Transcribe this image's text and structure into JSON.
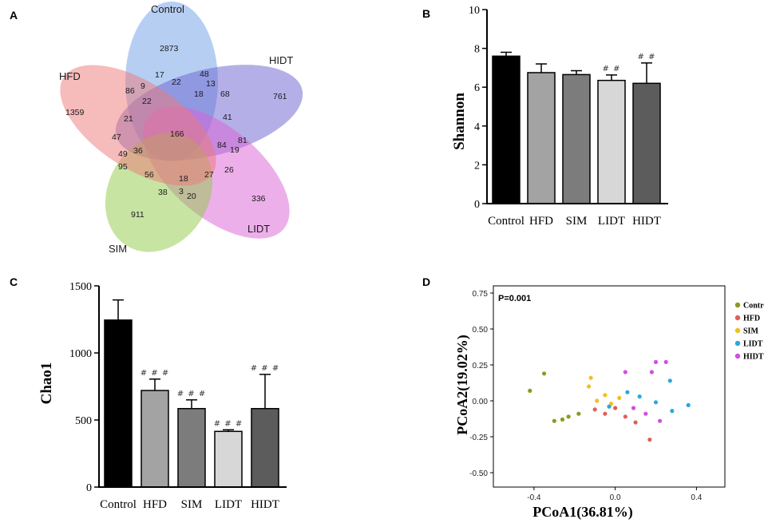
{
  "panel_letters": {
    "a": "A",
    "b": "B",
    "c": "C",
    "d": "D"
  },
  "chart_data": [
    {
      "type": "venn",
      "panel": "A",
      "sets": [
        {
          "name": "Control",
          "color": "#6f9ee8"
        },
        {
          "name": "HIDT",
          "color": "#6a62cf"
        },
        {
          "name": "LIDT",
          "color": "#db5fd6"
        },
        {
          "name": "SIM",
          "color": "#8fca48"
        },
        {
          "name": "HFD",
          "color": "#ee7878"
        }
      ],
      "region_values": [
        "2873",
        "761",
        "336",
        "911",
        "1359",
        "17",
        "48",
        "13",
        "22",
        "9",
        "86",
        "22",
        "18",
        "68",
        "41",
        "21",
        "47",
        "166",
        "84",
        "19",
        "81",
        "49",
        "36",
        "95",
        "56",
        "18",
        "27",
        "26",
        "38",
        "3",
        "20"
      ]
    },
    {
      "type": "bar",
      "panel": "B",
      "title": "",
      "ylabel": "Shannon",
      "ylim": [
        0,
        10
      ],
      "yticks": [
        "0",
        "2",
        "4",
        "6",
        "8",
        "10"
      ],
      "categories": [
        "Control",
        "HFD",
        "SIM",
        "LIDT",
        "HIDT"
      ],
      "values": [
        7.6,
        6.75,
        6.65,
        6.35,
        6.2
      ],
      "errors": [
        0.2,
        0.45,
        0.2,
        0.28,
        1.05
      ],
      "colors": [
        "#000000",
        "#a3a3a3",
        "#7c7c7c",
        "#d7d7d7",
        "#5c5c5c"
      ],
      "annotations": [
        "",
        "",
        "",
        "##",
        "##"
      ]
    },
    {
      "type": "bar",
      "panel": "C",
      "title": "",
      "ylabel": "Chao1",
      "ylim": [
        0,
        1500
      ],
      "yticks": [
        "0",
        "500",
        "1000",
        "1500"
      ],
      "categories": [
        "Control",
        "HFD",
        "SIM",
        "LIDT",
        "HIDT"
      ],
      "values": [
        1245,
        720,
        585,
        415,
        585
      ],
      "errors": [
        150,
        85,
        65,
        12,
        255
      ],
      "colors": [
        "#000000",
        "#a3a3a3",
        "#7c7c7c",
        "#d7d7d7",
        "#5c5c5c"
      ],
      "annotations": [
        "",
        "###",
        "###",
        "###",
        "###"
      ]
    },
    {
      "type": "scatter",
      "panel": "D",
      "xlabel": "PCoA1(36.81%)",
      "ylabel": "PCoA2(19.02%)",
      "annotation": "P=0.001",
      "xlim": [
        -0.6,
        0.54
      ],
      "ylim": [
        -0.6,
        0.8
      ],
      "xticks": [
        "-0.4",
        "0.0",
        "0.4"
      ],
      "yticks": [
        "0.75",
        "0.50",
        "0.25",
        "0.00",
        "-0.25",
        "-0.50"
      ],
      "legend_position": "right",
      "series": [
        {
          "name": "Control",
          "color": "#8c9a1e",
          "points": [
            [
              -0.35,
              0.19
            ],
            [
              -0.42,
              0.07
            ],
            [
              -0.3,
              -0.14
            ],
            [
              -0.26,
              -0.13
            ],
            [
              -0.23,
              -0.11
            ],
            [
              -0.18,
              -0.09
            ]
          ]
        },
        {
          "name": "HFD",
          "color": "#e0605a",
          "points": [
            [
              -0.1,
              -0.06
            ],
            [
              -0.05,
              -0.09
            ],
            [
              0.0,
              -0.05
            ],
            [
              0.05,
              -0.11
            ],
            [
              0.1,
              -0.15
            ],
            [
              0.17,
              -0.27
            ]
          ]
        },
        {
          "name": "SIM",
          "color": "#f0c020",
          "points": [
            [
              -0.12,
              0.16
            ],
            [
              -0.13,
              0.1
            ],
            [
              -0.05,
              0.04
            ],
            [
              -0.02,
              -0.02
            ],
            [
              0.02,
              0.02
            ],
            [
              -0.09,
              0.0
            ]
          ]
        },
        {
          "name": "LIDT",
          "color": "#2aa8e0",
          "points": [
            [
              0.06,
              0.06
            ],
            [
              0.12,
              0.03
            ],
            [
              0.27,
              0.14
            ],
            [
              0.36,
              -0.03
            ],
            [
              0.28,
              -0.07
            ],
            [
              0.2,
              -0.01
            ],
            [
              -0.03,
              -0.04
            ]
          ]
        },
        {
          "name": "HIDT",
          "color": "#d050e0",
          "points": [
            [
              0.2,
              0.27
            ],
            [
              0.25,
              0.27
            ],
            [
              0.05,
              0.2
            ],
            [
              0.18,
              0.2
            ],
            [
              0.09,
              -0.05
            ],
            [
              0.15,
              -0.09
            ],
            [
              0.22,
              -0.14
            ]
          ]
        }
      ]
    }
  ]
}
